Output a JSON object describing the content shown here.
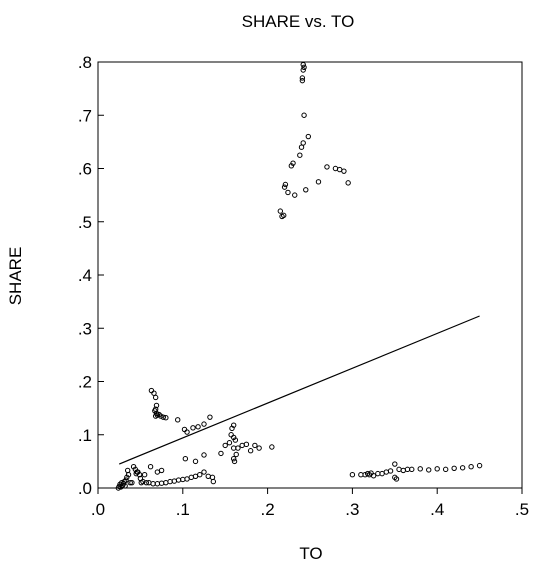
{
  "chart_data": {
    "type": "scatter",
    "title": "SHARE vs. TO",
    "xlabel": "TO",
    "ylabel": "SHARE",
    "xlim": [
      0,
      0.5
    ],
    "ylim": [
      0,
      0.8
    ],
    "x_ticks": [
      {
        "value": 0.0,
        "label": ".0"
      },
      {
        "value": 0.1,
        "label": ".1"
      },
      {
        "value": 0.2,
        "label": ".2"
      },
      {
        "value": 0.3,
        "label": ".3"
      },
      {
        "value": 0.4,
        "label": ".4"
      },
      {
        "value": 0.5,
        "label": ".5"
      }
    ],
    "y_ticks": [
      {
        "value": 0.0,
        "label": ".0"
      },
      {
        "value": 0.1,
        "label": ".1"
      },
      {
        "value": 0.2,
        "label": ".2"
      },
      {
        "value": 0.3,
        "label": ".3"
      },
      {
        "value": 0.4,
        "label": ".4"
      },
      {
        "value": 0.5,
        "label": ".5"
      },
      {
        "value": 0.6,
        "label": ".6"
      },
      {
        "value": 0.7,
        "label": ".7"
      },
      {
        "value": 0.8,
        "label": ".8"
      }
    ],
    "grid": false,
    "fit_line": {
      "x": [
        0.025,
        0.45
      ],
      "y": [
        0.045,
        0.323
      ]
    },
    "points": [
      [
        0.024,
        0.0
      ],
      [
        0.025,
        0.003
      ],
      [
        0.026,
        0.007
      ],
      [
        0.027,
        0.002
      ],
      [
        0.028,
        0.01
      ],
      [
        0.029,
        0.005
      ],
      [
        0.03,
        0.008
      ],
      [
        0.031,
        0.012
      ],
      [
        0.032,
        0.004
      ],
      [
        0.033,
        0.015
      ],
      [
        0.034,
        0.02
      ],
      [
        0.035,
        0.033
      ],
      [
        0.036,
        0.025
      ],
      [
        0.038,
        0.01
      ],
      [
        0.04,
        0.01
      ],
      [
        0.042,
        0.04
      ],
      [
        0.044,
        0.035
      ],
      [
        0.045,
        0.027
      ],
      [
        0.046,
        0.03
      ],
      [
        0.047,
        0.03
      ],
      [
        0.049,
        0.025
      ],
      [
        0.05,
        0.018
      ],
      [
        0.051,
        0.01
      ],
      [
        0.053,
        0.012
      ],
      [
        0.055,
        0.025
      ],
      [
        0.057,
        0.01
      ],
      [
        0.06,
        0.01
      ],
      [
        0.062,
        0.04
      ],
      [
        0.065,
        0.008
      ],
      [
        0.07,
        0.008
      ],
      [
        0.075,
        0.009
      ],
      [
        0.08,
        0.01
      ],
      [
        0.085,
        0.012
      ],
      [
        0.09,
        0.013
      ],
      [
        0.095,
        0.015
      ],
      [
        0.1,
        0.016
      ],
      [
        0.105,
        0.017
      ],
      [
        0.11,
        0.02
      ],
      [
        0.115,
        0.022
      ],
      [
        0.12,
        0.025
      ],
      [
        0.125,
        0.03
      ],
      [
        0.13,
        0.022
      ],
      [
        0.135,
        0.02
      ],
      [
        0.136,
        0.012
      ],
      [
        0.07,
        0.03
      ],
      [
        0.075,
        0.033
      ],
      [
        0.063,
        0.183
      ],
      [
        0.066,
        0.178
      ],
      [
        0.068,
        0.17
      ],
      [
        0.069,
        0.155
      ],
      [
        0.068,
        0.148
      ],
      [
        0.067,
        0.145
      ],
      [
        0.069,
        0.14
      ],
      [
        0.068,
        0.135
      ],
      [
        0.07,
        0.137
      ],
      [
        0.072,
        0.138
      ],
      [
        0.074,
        0.135
      ],
      [
        0.077,
        0.133
      ],
      [
        0.08,
        0.132
      ],
      [
        0.094,
        0.128
      ],
      [
        0.102,
        0.11
      ],
      [
        0.105,
        0.105
      ],
      [
        0.112,
        0.113
      ],
      [
        0.118,
        0.115
      ],
      [
        0.125,
        0.12
      ],
      [
        0.132,
        0.133
      ],
      [
        0.115,
        0.05
      ],
      [
        0.103,
        0.055
      ],
      [
        0.125,
        0.062
      ],
      [
        0.145,
        0.065
      ],
      [
        0.15,
        0.08
      ],
      [
        0.155,
        0.085
      ],
      [
        0.157,
        0.1
      ],
      [
        0.158,
        0.112
      ],
      [
        0.16,
        0.118
      ],
      [
        0.16,
        0.095
      ],
      [
        0.162,
        0.09
      ],
      [
        0.16,
        0.075
      ],
      [
        0.163,
        0.063
      ],
      [
        0.16,
        0.055
      ],
      [
        0.161,
        0.05
      ],
      [
        0.165,
        0.075
      ],
      [
        0.17,
        0.08
      ],
      [
        0.175,
        0.082
      ],
      [
        0.18,
        0.07
      ],
      [
        0.185,
        0.08
      ],
      [
        0.19,
        0.075
      ],
      [
        0.205,
        0.077
      ],
      [
        0.215,
        0.52
      ],
      [
        0.217,
        0.51
      ],
      [
        0.219,
        0.512
      ],
      [
        0.22,
        0.565
      ],
      [
        0.221,
        0.57
      ],
      [
        0.224,
        0.555
      ],
      [
        0.228,
        0.605
      ],
      [
        0.23,
        0.61
      ],
      [
        0.232,
        0.55
      ],
      [
        0.238,
        0.625
      ],
      [
        0.24,
        0.64
      ],
      [
        0.242,
        0.648
      ],
      [
        0.243,
        0.7
      ],
      [
        0.241,
        0.765
      ],
      [
        0.241,
        0.77
      ],
      [
        0.242,
        0.785
      ],
      [
        0.243,
        0.79
      ],
      [
        0.242,
        0.795
      ],
      [
        0.245,
        0.56
      ],
      [
        0.248,
        0.66
      ],
      [
        0.26,
        0.575
      ],
      [
        0.27,
        0.603
      ],
      [
        0.28,
        0.6
      ],
      [
        0.285,
        0.598
      ],
      [
        0.29,
        0.595
      ],
      [
        0.295,
        0.573
      ],
      [
        0.3,
        0.025
      ],
      [
        0.31,
        0.025
      ],
      [
        0.315,
        0.025
      ],
      [
        0.318,
        0.027
      ],
      [
        0.32,
        0.025
      ],
      [
        0.322,
        0.028
      ],
      [
        0.325,
        0.023
      ],
      [
        0.33,
        0.027
      ],
      [
        0.335,
        0.027
      ],
      [
        0.34,
        0.03
      ],
      [
        0.345,
        0.032
      ],
      [
        0.35,
        0.045
      ],
      [
        0.35,
        0.02
      ],
      [
        0.352,
        0.017
      ],
      [
        0.355,
        0.035
      ],
      [
        0.36,
        0.033
      ],
      [
        0.365,
        0.035
      ],
      [
        0.37,
        0.035
      ],
      [
        0.38,
        0.036
      ],
      [
        0.39,
        0.034
      ],
      [
        0.4,
        0.036
      ],
      [
        0.41,
        0.035
      ],
      [
        0.42,
        0.037
      ],
      [
        0.43,
        0.038
      ],
      [
        0.44,
        0.04
      ],
      [
        0.45,
        0.042
      ]
    ]
  }
}
